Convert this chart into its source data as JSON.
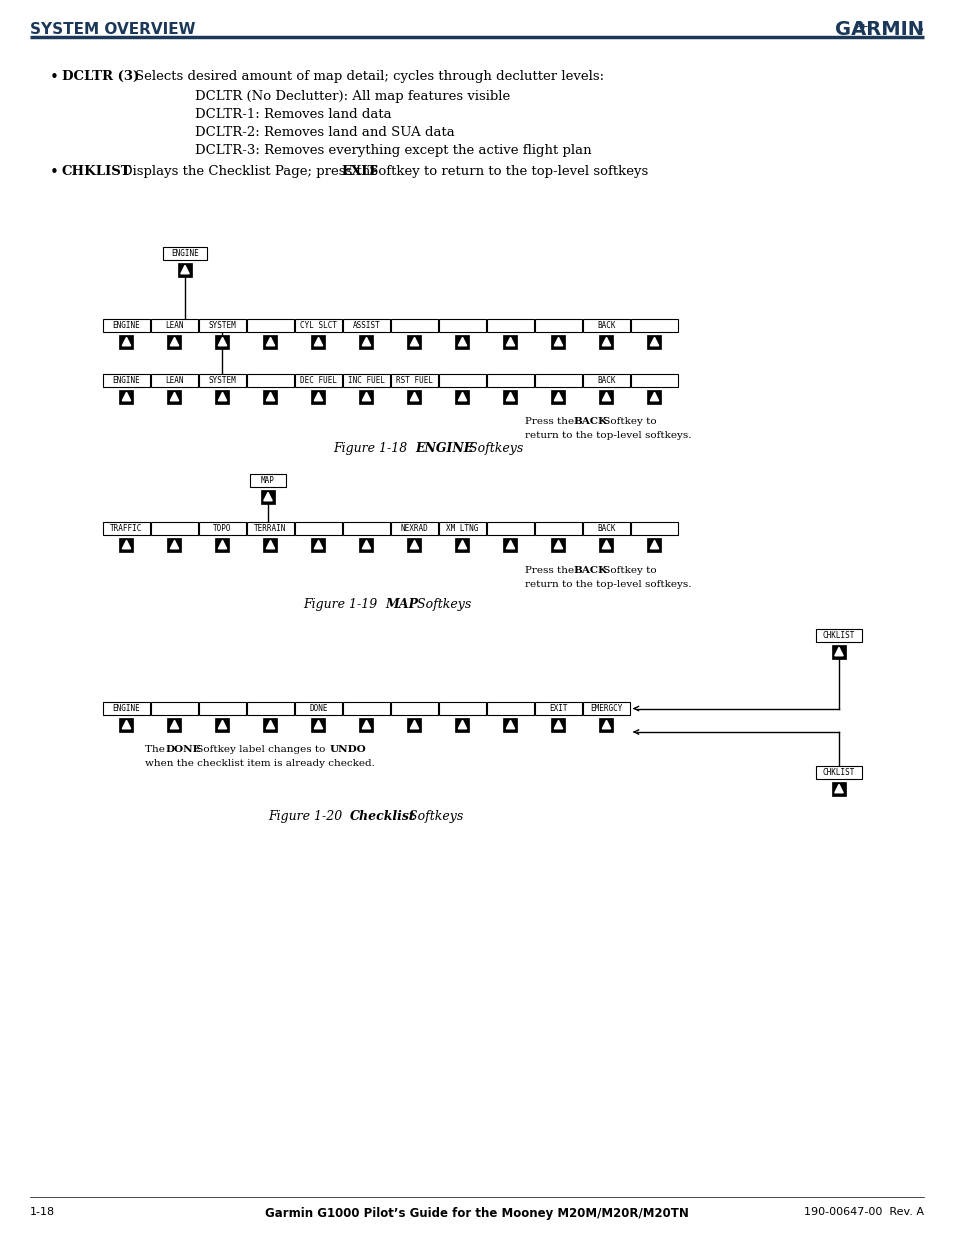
{
  "page_bg": "#ffffff",
  "header_color": "#1b3858",
  "header_text": "SYSTEM OVERVIEW",
  "bullet1_bold": "DCLTR (3)",
  "bullet1_rest": "Selects desired amount of map detail; cycles through declutter levels:",
  "bullet1_sub": [
    "DCLTR (No Declutter): All map features visible",
    "DCLTR-1: Removes land data",
    "DCLTR-2: Removes land and SUA data",
    "DCLTR-3: Removes everything except the active flight plan"
  ],
  "bullet2_bold": "CHKLIST",
  "bullet2_pre": "Displays the Checklist Page; press the ",
  "bullet2_bold2": "EXIT",
  "bullet2_post": " Softkey to return to the top-level softkeys",
  "fig18_top": "ENGINE",
  "fig18_row1": [
    "ENGINE",
    "LEAN",
    "SYSTEM",
    "",
    "CYL SLCT",
    "ASSIST",
    "",
    "",
    "",
    "",
    "BACK",
    ""
  ],
  "fig18_row2": [
    "ENGINE",
    "LEAN",
    "SYSTEM",
    "",
    "DEC FUEL",
    "INC FUEL",
    "RST FUEL",
    "",
    "",
    "",
    "BACK",
    ""
  ],
  "fig19_top": "MAP",
  "fig19_row": [
    "TRAFFIC",
    "",
    "TOPO",
    "TERRAIN",
    "",
    "",
    "NEXRAD",
    "XM LTNG",
    "",
    "",
    "BACK",
    ""
  ],
  "fig20_top": "CHKLIST",
  "fig20_row": [
    "ENGINE",
    "",
    "",
    "",
    "DONE",
    "",
    "",
    "",
    "",
    "EXIT",
    "EMERGCY"
  ],
  "fig20_bot": "CHKLIST",
  "fig18_caption_normal": "Figure 1-18  ",
  "fig18_caption_bold": "ENGINE",
  "fig18_caption_rest": " Softkeys",
  "fig19_caption_normal": "Figure 1-19  ",
  "fig19_caption_bold": "MAP",
  "fig19_caption_rest": " Softkeys",
  "fig20_caption_normal": "Figure 1-20  ",
  "fig20_caption_bold": "Checklist",
  "fig20_caption_rest": " Softkeys",
  "back_pre": "Press the ",
  "back_bold": "BACK",
  "back_post": " Softkey to",
  "back_line2": "return to the top-level softkeys.",
  "done_pre": "The ",
  "done_bold": "DONE",
  "done_mid": " Softkey label changes to ",
  "done_bold2": "UNDO",
  "done_line2": "when the checklist item is already checked.",
  "footer_left": "1-18",
  "footer_center": "Garmin G1000 Pilot’s Guide for the Mooney M20M/M20R/M20TN",
  "footer_right": "190-00647-00  Rev. A"
}
